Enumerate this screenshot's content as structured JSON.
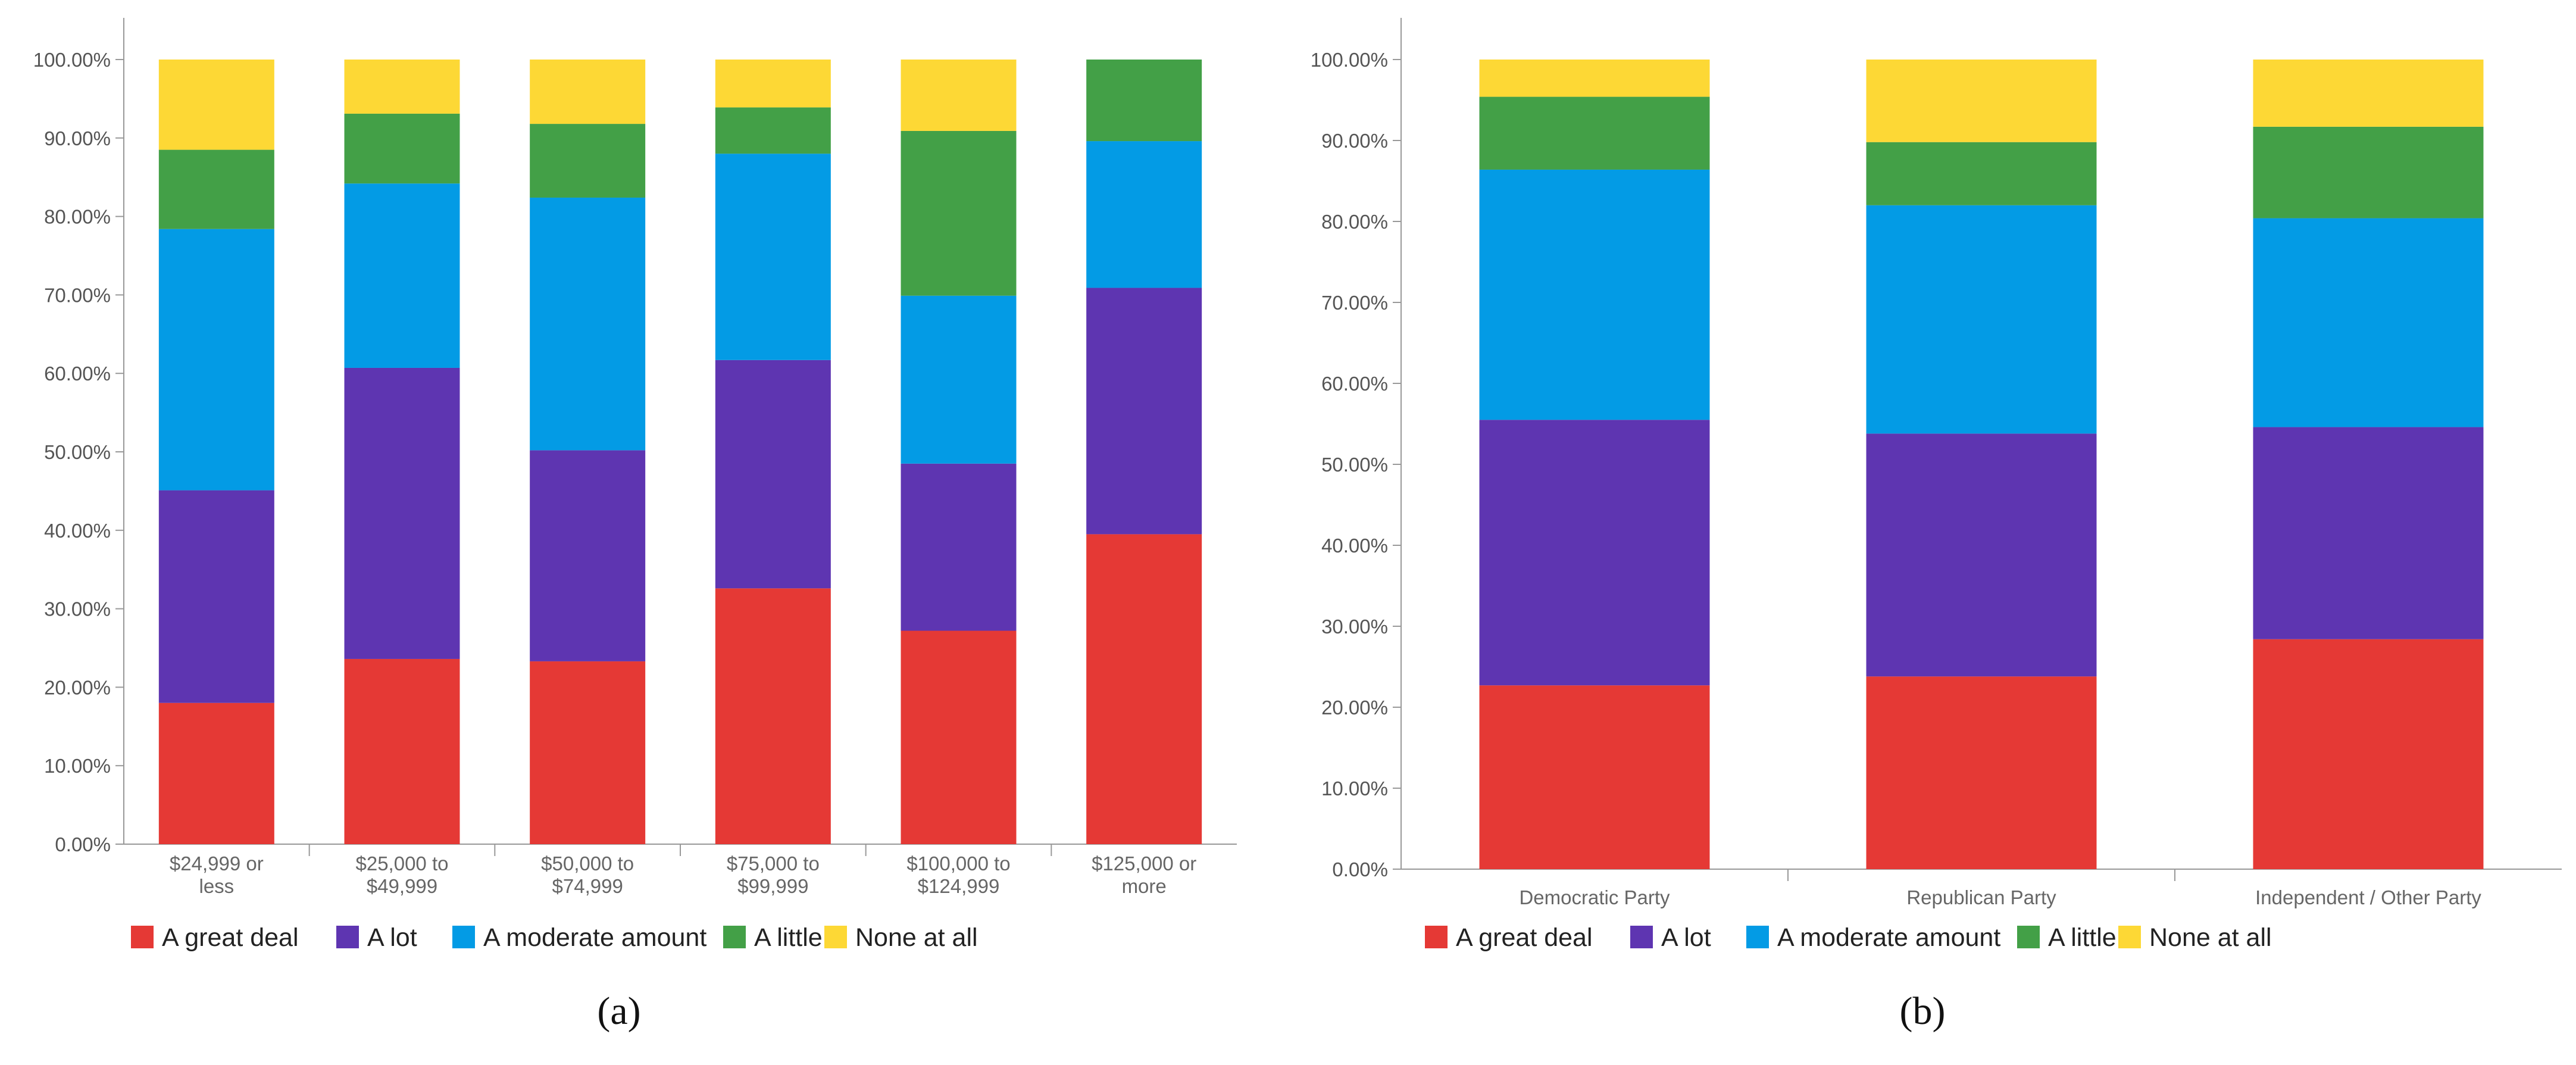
{
  "colors": {
    "A great deal": "#e53935",
    "A lot": "#5e35b1",
    "A moderate amount": "#039be5",
    "A little": "#43a047",
    "None at all": "#fdd835"
  },
  "chart_data": [
    {
      "type": "bar",
      "stacked": true,
      "panel_label": "(a)",
      "categories": [
        [
          "$24,999 or",
          "less"
        ],
        [
          "$25,000 to",
          "$49,999"
        ],
        [
          "$50,000 to",
          "$74,999"
        ],
        [
          "$75,000 to",
          "$99,999"
        ],
        [
          "$100,000 to",
          "$124,999"
        ],
        [
          "$125,000 or",
          "more"
        ]
      ],
      "series": [
        {
          "name": "A great deal",
          "values": [
            18.0,
            23.6,
            23.3,
            32.6,
            27.2,
            39.5
          ]
        },
        {
          "name": "A lot",
          "values": [
            27.1,
            37.1,
            26.9,
            29.1,
            21.3,
            31.4
          ]
        },
        {
          "name": "A moderate amount",
          "values": [
            33.3,
            23.5,
            32.2,
            26.3,
            21.4,
            18.7
          ]
        },
        {
          "name": "A little",
          "values": [
            10.1,
            8.9,
            9.4,
            5.9,
            21.0,
            10.4
          ]
        },
        {
          "name": "None at all",
          "values": [
            11.5,
            6.9,
            8.2,
            6.1,
            9.1,
            0.0
          ]
        }
      ],
      "y_ticks": [
        "0.00%",
        "10.00%",
        "20.00%",
        "30.00%",
        "40.00%",
        "50.00%",
        "60.00%",
        "70.00%",
        "80.00%",
        "90.00%",
        "100.00%"
      ],
      "ylim": [
        0,
        100
      ],
      "legend": [
        "A great deal",
        "A lot",
        "A moderate amount",
        "A little",
        "None at all"
      ]
    },
    {
      "type": "bar",
      "stacked": true,
      "panel_label": "(b)",
      "categories": [
        [
          "Democratic Party"
        ],
        [
          "Republican Party"
        ],
        [
          "Independent / Other Party"
        ]
      ],
      "series": [
        {
          "name": "A great deal",
          "values": [
            22.7,
            23.8,
            28.4
          ]
        },
        {
          "name": "A lot",
          "values": [
            32.8,
            30.0,
            26.2
          ]
        },
        {
          "name": "A moderate amount",
          "values": [
            30.9,
            28.2,
            25.8
          ]
        },
        {
          "name": "A little",
          "values": [
            9.0,
            7.8,
            11.3
          ]
        },
        {
          "name": "None at all",
          "values": [
            4.6,
            10.2,
            8.3
          ]
        }
      ],
      "y_ticks": [
        "0.00%",
        "10.00%",
        "20.00%",
        "30.00%",
        "40.00%",
        "50.00%",
        "60.00%",
        "70.00%",
        "80.00%",
        "90.00%",
        "100.00%"
      ],
      "ylim": [
        0,
        100
      ],
      "legend": [
        "A great deal",
        "A lot",
        "A moderate amount",
        "A little",
        "None at all"
      ]
    }
  ]
}
